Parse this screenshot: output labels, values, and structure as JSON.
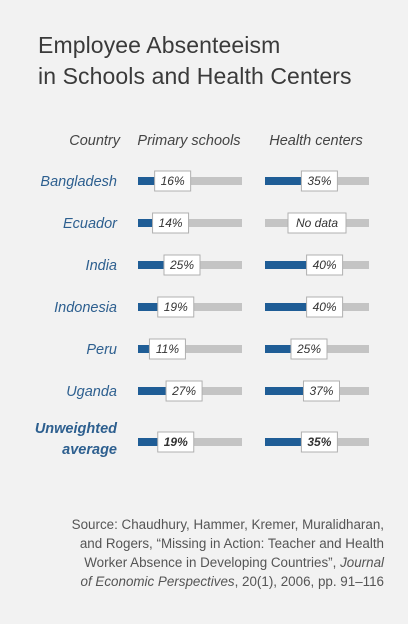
{
  "title_line1": "Employee Absenteeism",
  "title_line2": "in Schools and Health Centers",
  "headers": {
    "country": "Country",
    "schools": "Primary schools",
    "health": "Health centers"
  },
  "colors": {
    "bar": "#1f5d96",
    "track": "#c4c4c4",
    "country_text": "#2d5f8f",
    "background": "#f2f2f2"
  },
  "chart_data": {
    "type": "bar",
    "categories": [
      "Bangladesh",
      "Ecuador",
      "India",
      "Indonesia",
      "Peru",
      "Uganda",
      "Unweighted average"
    ],
    "series": [
      {
        "name": "Primary schools",
        "values": [
          16,
          14,
          25,
          19,
          11,
          27,
          19
        ],
        "labels": [
          "16%",
          "14%",
          "25%",
          "19%",
          "11%",
          "27%",
          "19%"
        ]
      },
      {
        "name": "Health centers",
        "values": [
          35,
          null,
          40,
          40,
          25,
          37,
          35
        ],
        "labels": [
          "35%",
          "No data",
          "40%",
          "40%",
          "25%",
          "37%",
          "35%"
        ]
      }
    ],
    "xlabel": "",
    "ylabel": "",
    "xlim": [
      0,
      100
    ]
  },
  "source": {
    "line1": "Source: Chaudhury, Hammer, Kremer, Muralidharan,",
    "line2": "and Rogers, “Missing in Action: Teacher and Health",
    "line3": "Worker Absence in Developing Countries”, ",
    "line3_journal": "Journal",
    "line4_journal": "of Economic Perspectives",
    "line4_rest": ", 20(1), 2006, pp. 91–116"
  }
}
